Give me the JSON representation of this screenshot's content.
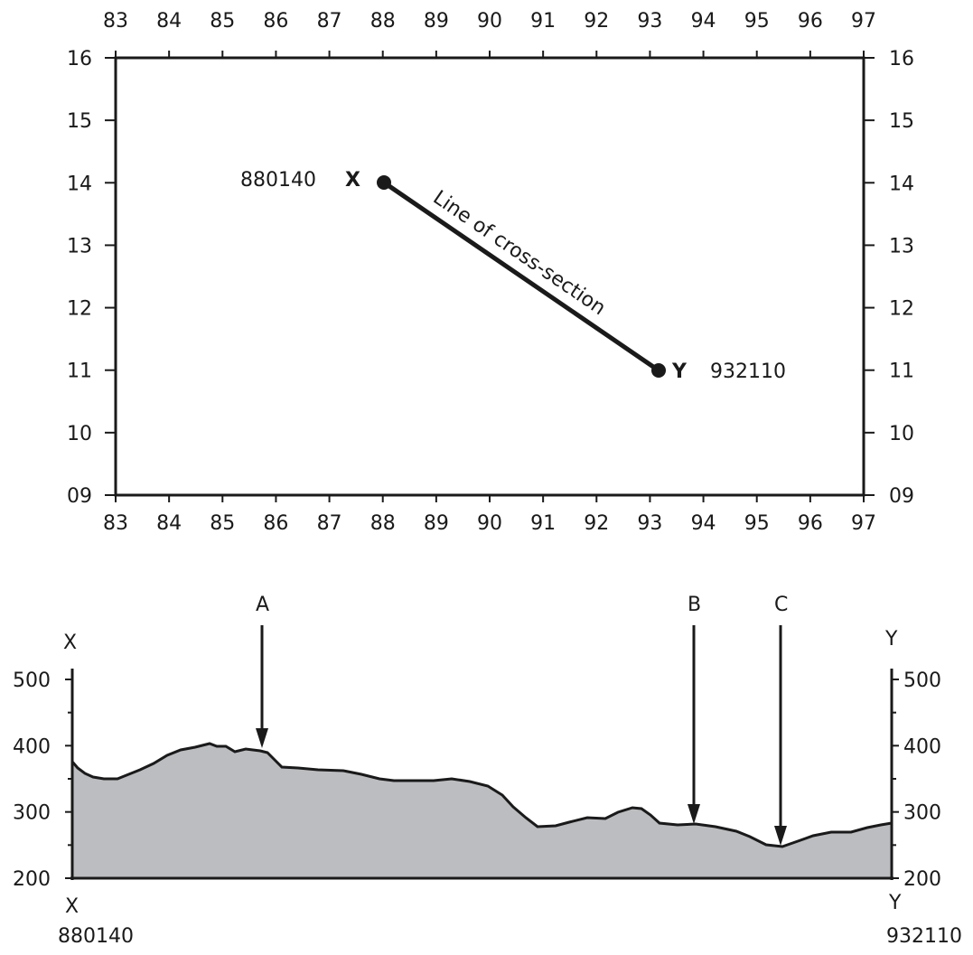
{
  "map": {
    "x_ticks": [
      "83",
      "84",
      "85",
      "86",
      "87",
      "88",
      "89",
      "90",
      "91",
      "92",
      "93",
      "94",
      "95",
      "96",
      "97"
    ],
    "y_ticks": [
      "16",
      "15",
      "14",
      "13",
      "12",
      "11",
      "10",
      "09"
    ],
    "point_x": {
      "letter": "X",
      "grid_ref": "880140",
      "easting": 88.0,
      "northing": 14.0
    },
    "point_y": {
      "letter": "Y",
      "grid_ref": "932110",
      "easting": 93.2,
      "northing": 11.0
    },
    "line_label": "Line of cross-section"
  },
  "section": {
    "y_ticks": [
      "500",
      "400",
      "300",
      "200"
    ],
    "left_end": {
      "top_letter": "X",
      "bottom_letter": "X",
      "grid_ref": "880140"
    },
    "right_end": {
      "top_letter": "Y",
      "bottom_letter": "Y",
      "grid_ref": "932110"
    },
    "markers": [
      {
        "label": "A"
      },
      {
        "label": "B"
      },
      {
        "label": "C"
      }
    ],
    "fill_color": "#bcbdc0"
  }
}
